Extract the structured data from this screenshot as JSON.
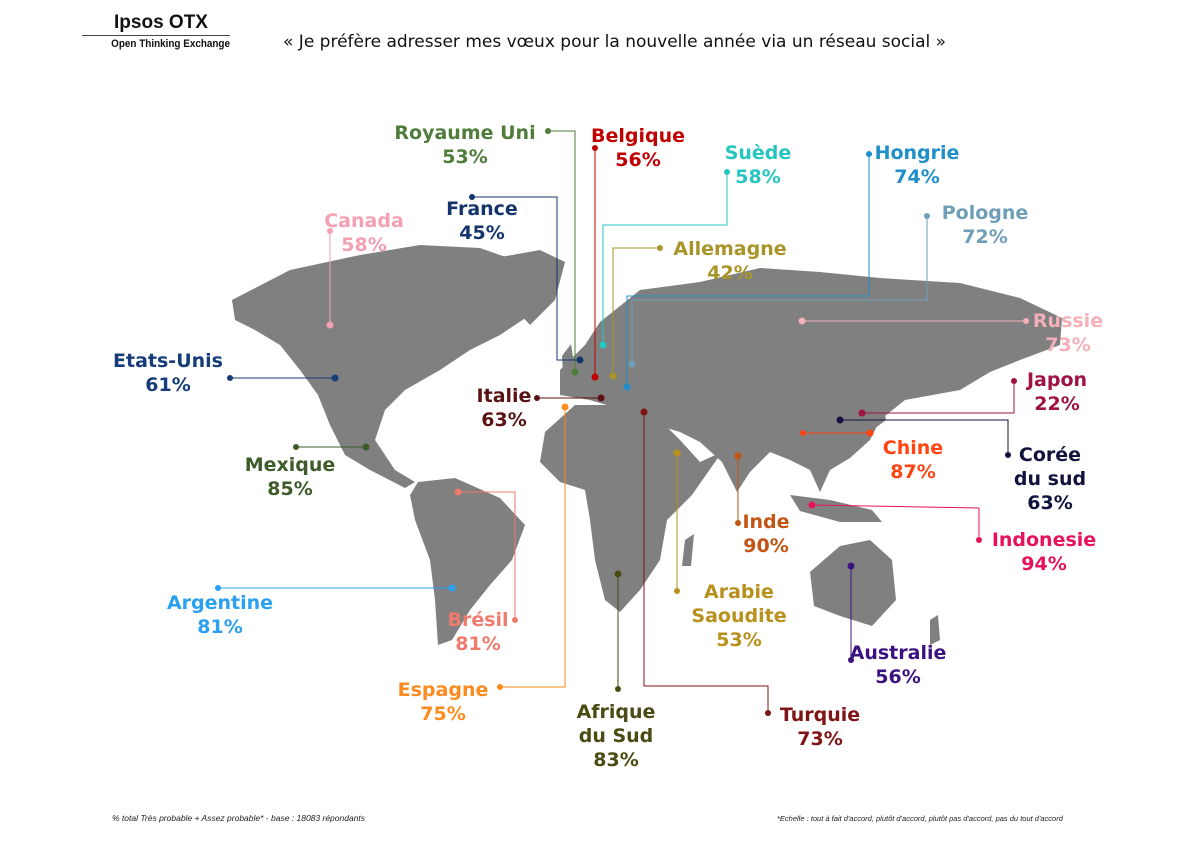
{
  "logo": {
    "brand": "Ipsos OTX",
    "tagline": "Open Thinking Exchange"
  },
  "title": "« Je préfère adresser mes vœux pour la nouvelle année via un réseau social »",
  "map_color": "#808080",
  "countries": [
    {
      "id": "royaume-uni",
      "lines": [
        "Royaume Uni"
      ],
      "value": "53%",
      "color": "#4f7c3a"
    },
    {
      "id": "belgique",
      "lines": [
        "Belgique"
      ],
      "value": "56%",
      "color": "#c00000"
    },
    {
      "id": "suede",
      "lines": [
        "Suède"
      ],
      "value": "58%",
      "color": "#26c6c0"
    },
    {
      "id": "hongrie",
      "lines": [
        "Hongrie"
      ],
      "value": "74%",
      "color": "#1f8fc9"
    },
    {
      "id": "pologne",
      "lines": [
        "Pologne"
      ],
      "value": "72%",
      "color": "#6f9fb8"
    },
    {
      "id": "france",
      "lines": [
        "France"
      ],
      "value": "45%",
      "color": "#14346c"
    },
    {
      "id": "allemagne",
      "lines": [
        "Allemagne"
      ],
      "value": "42%",
      "color": "#a89428"
    },
    {
      "id": "canada",
      "lines": [
        "Canada"
      ],
      "value": "58%",
      "color": "#f4a0b2"
    },
    {
      "id": "etats-unis",
      "lines": [
        "Etats-Unis"
      ],
      "value": "61%",
      "color": "#163c7a"
    },
    {
      "id": "italie",
      "lines": [
        "Italie"
      ],
      "value": "63%",
      "color": "#5a1212"
    },
    {
      "id": "mexique",
      "lines": [
        "Mexique"
      ],
      "value": "85%",
      "color": "#3d5c2a"
    },
    {
      "id": "argentine",
      "lines": [
        "Argentine"
      ],
      "value": "81%",
      "color": "#2aa0f0"
    },
    {
      "id": "bresil",
      "lines": [
        "Brésil"
      ],
      "value": "81%",
      "color": "#f07a6c"
    },
    {
      "id": "espagne",
      "lines": [
        "Espagne"
      ],
      "value": "75%",
      "color": "#ff8a1e"
    },
    {
      "id": "afrique-du-sud",
      "lines": [
        "Afrique",
        "du Sud"
      ],
      "value": "83%",
      "color": "#4a4a12"
    },
    {
      "id": "arabie-saoudite",
      "lines": [
        "Arabie",
        "Saoudite"
      ],
      "value": "53%",
      "color": "#b8901c"
    },
    {
      "id": "turquie",
      "lines": [
        "Turquie"
      ],
      "value": "73%",
      "color": "#801414"
    },
    {
      "id": "inde",
      "lines": [
        "Inde"
      ],
      "value": "90%",
      "color": "#c25414"
    },
    {
      "id": "australie",
      "lines": [
        "Australie"
      ],
      "value": "56%",
      "color": "#3c1282"
    },
    {
      "id": "indonesie",
      "lines": [
        "Indonesie"
      ],
      "value": "94%",
      "color": "#e8125c"
    },
    {
      "id": "chine",
      "lines": [
        "Chine"
      ],
      "value": "87%",
      "color": "#ff4412"
    },
    {
      "id": "coree-du-sud",
      "lines": [
        "Corée",
        "du sud"
      ],
      "value": "63%",
      "color": "#12123e"
    },
    {
      "id": "japon",
      "lines": [
        "Japon"
      ],
      "value": "22%",
      "color": "#a01244"
    },
    {
      "id": "russie",
      "lines": [
        "Russie"
      ],
      "value": "73%",
      "color": "#f4b0b8"
    }
  ],
  "footer": {
    "base": "% total Très probable + Assez probable* - base : 18083 répondants",
    "scale": "*Echelle : tout à fait d'accord, plutôt d'accord, plutôt pas d'accord, pas du tout d'accord"
  }
}
